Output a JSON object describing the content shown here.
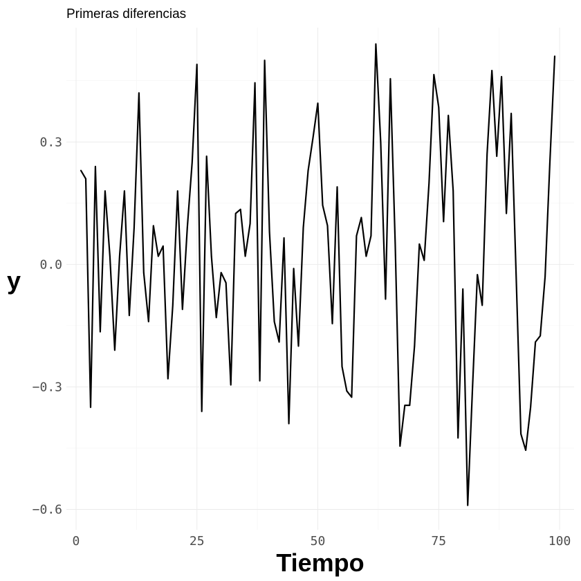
{
  "chart_data": {
    "type": "line",
    "title": "Primeras diferencias",
    "xlabel": "Tiempo",
    "ylabel": "y",
    "xlim": [
      -2,
      103
    ],
    "ylim": [
      -0.65,
      0.58
    ],
    "x_ticks": [
      0,
      25,
      50,
      75,
      100
    ],
    "x_tick_labels": [
      "0",
      "25",
      "50",
      "75",
      "100"
    ],
    "y_ticks": [
      -0.6,
      -0.3,
      0.0,
      0.3
    ],
    "y_tick_labels": [
      "-0.6",
      "-0.3",
      "0.0",
      "0.3"
    ],
    "grid": true,
    "legend": "none",
    "series": [
      {
        "color": "#000000",
        "x": [
          1,
          2,
          3,
          4,
          5,
          6,
          7,
          8,
          9,
          10,
          11,
          12,
          13,
          14,
          15,
          16,
          17,
          18,
          19,
          20,
          21,
          22,
          23,
          24,
          25,
          26,
          27,
          28,
          29,
          30,
          31,
          32,
          33,
          34,
          35,
          36,
          37,
          38,
          39,
          40,
          41,
          42,
          43,
          44,
          45,
          46,
          47,
          48,
          49,
          50,
          51,
          52,
          53,
          54,
          55,
          56,
          57,
          58,
          59,
          60,
          61,
          62,
          63,
          64,
          65,
          66,
          67,
          68,
          69,
          70,
          71,
          72,
          73,
          74,
          75,
          76,
          77,
          78,
          79,
          80,
          81,
          82,
          83,
          84,
          85,
          86,
          87,
          88,
          89,
          90,
          91,
          92,
          93,
          94,
          95,
          96,
          97,
          98,
          99
        ],
        "y": [
          0.23,
          0.21,
          -0.35,
          0.24,
          -0.165,
          0.18,
          0.02,
          -0.21,
          0.02,
          0.18,
          -0.125,
          0.09,
          0.42,
          -0.02,
          -0.14,
          0.095,
          0.02,
          0.045,
          -0.28,
          -0.1,
          0.18,
          -0.11,
          0.09,
          0.25,
          0.49,
          -0.36,
          0.265,
          0.02,
          -0.13,
          -0.02,
          -0.045,
          -0.295,
          0.125,
          0.135,
          0.02,
          0.1,
          0.445,
          -0.285,
          0.5,
          0.08,
          -0.14,
          -0.19,
          0.065,
          -0.39,
          -0.01,
          -0.2,
          0.09,
          0.23,
          0.31,
          0.395,
          0.145,
          0.095,
          -0.145,
          0.19,
          -0.25,
          -0.31,
          -0.325,
          0.07,
          0.115,
          0.02,
          0.07,
          0.54,
          0.3,
          -0.085,
          0.455,
          0.05,
          -0.445,
          -0.345,
          -0.345,
          -0.2,
          0.05,
          0.01,
          0.2,
          0.465,
          0.385,
          0.105,
          0.365,
          0.18,
          -0.425,
          -0.06,
          -0.59,
          -0.3,
          -0.025,
          -0.1,
          0.27,
          0.475,
          0.265,
          0.46,
          0.125,
          0.37,
          -0.02,
          -0.415,
          -0.455,
          -0.35,
          -0.19,
          -0.175,
          -0.03,
          0.25,
          0.51
        ]
      }
    ]
  }
}
